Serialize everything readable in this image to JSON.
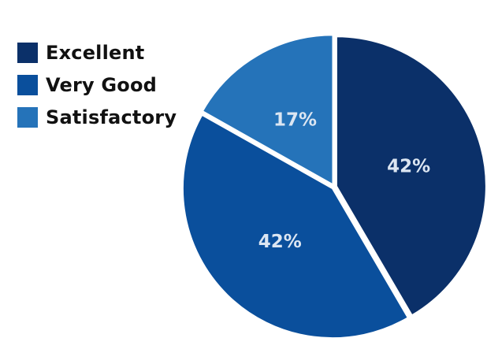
{
  "chart_data": {
    "type": "pie",
    "title": "",
    "slices": [
      {
        "label": "Excellent",
        "value": 42,
        "display": "42%",
        "color": "#0b3069"
      },
      {
        "label": "Very Good",
        "value": 42,
        "display": "42%",
        "color": "#0a4f9c"
      },
      {
        "label": "Satisfactory",
        "value": 17,
        "display": "17%",
        "color": "#2573b9"
      }
    ],
    "legend": {
      "position": "top-left"
    }
  }
}
